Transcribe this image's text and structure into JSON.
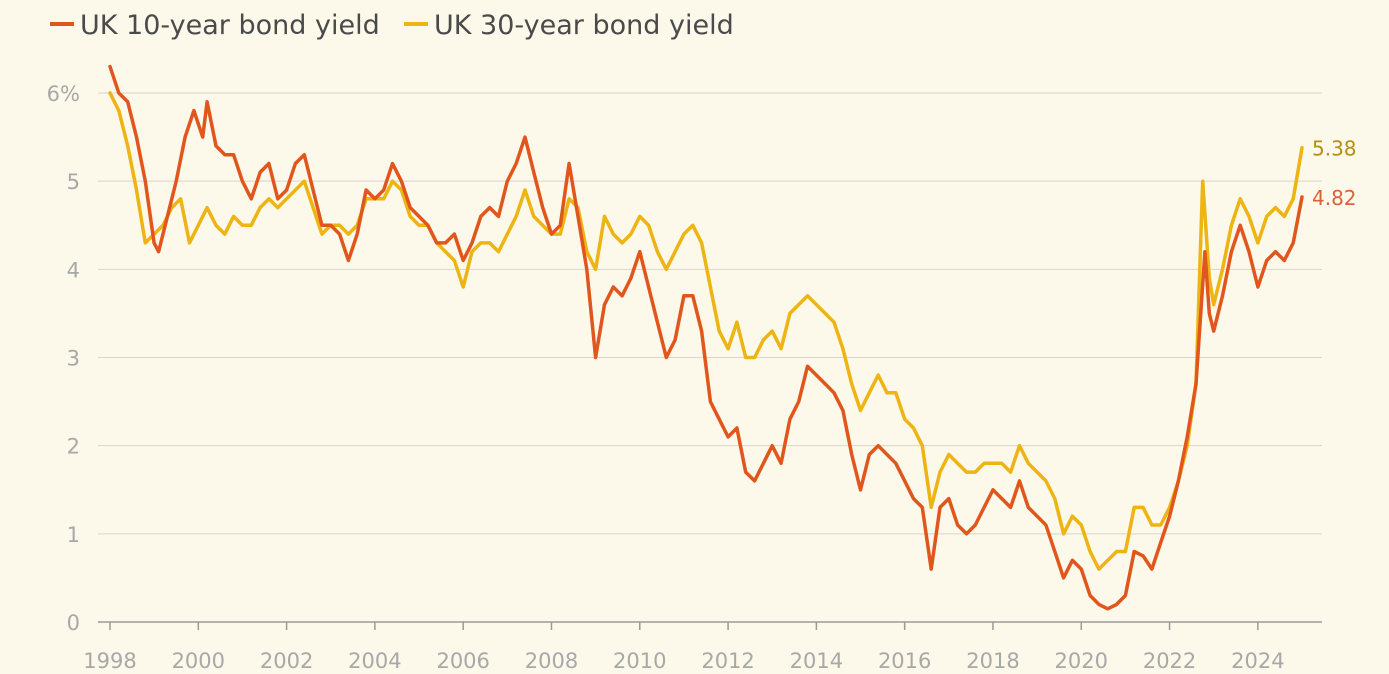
{
  "chart_data": {
    "type": "line",
    "ylim": [
      0,
      6
    ],
    "xlim": [
      1998,
      2025
    ],
    "x_ticks": [
      "1998",
      "2000",
      "2002",
      "2004",
      "2006",
      "2008",
      "2010",
      "2012",
      "2014",
      "2016",
      "2018",
      "2020",
      "2022",
      "2024"
    ],
    "y_ticks": [
      "0",
      "1",
      "2",
      "3",
      "4",
      "5",
      "6%"
    ],
    "grid": true,
    "legend": "top-left",
    "series": [
      {
        "name": "UK 10-year bond yield",
        "color": "#e0561c",
        "end_label": "4.82",
        "points": [
          [
            1998.0,
            6.3
          ],
          [
            1998.2,
            6.0
          ],
          [
            1998.4,
            5.9
          ],
          [
            1998.6,
            5.5
          ],
          [
            1998.8,
            5.0
          ],
          [
            1999.0,
            4.3
          ],
          [
            1999.1,
            4.2
          ],
          [
            1999.3,
            4.6
          ],
          [
            1999.5,
            5.0
          ],
          [
            1999.7,
            5.5
          ],
          [
            1999.9,
            5.8
          ],
          [
            2000.1,
            5.5
          ],
          [
            2000.2,
            5.9
          ],
          [
            2000.4,
            5.4
          ],
          [
            2000.6,
            5.3
          ],
          [
            2000.8,
            5.3
          ],
          [
            2001.0,
            5.0
          ],
          [
            2001.2,
            4.8
          ],
          [
            2001.4,
            5.1
          ],
          [
            2001.6,
            5.2
          ],
          [
            2001.8,
            4.8
          ],
          [
            2002.0,
            4.9
          ],
          [
            2002.2,
            5.2
          ],
          [
            2002.4,
            5.3
          ],
          [
            2002.6,
            4.9
          ],
          [
            2002.8,
            4.5
          ],
          [
            2003.0,
            4.5
          ],
          [
            2003.2,
            4.4
          ],
          [
            2003.4,
            4.1
          ],
          [
            2003.6,
            4.4
          ],
          [
            2003.8,
            4.9
          ],
          [
            2004.0,
            4.8
          ],
          [
            2004.2,
            4.9
          ],
          [
            2004.4,
            5.2
          ],
          [
            2004.6,
            5.0
          ],
          [
            2004.8,
            4.7
          ],
          [
            2005.0,
            4.6
          ],
          [
            2005.2,
            4.5
          ],
          [
            2005.4,
            4.3
          ],
          [
            2005.6,
            4.3
          ],
          [
            2005.8,
            4.4
          ],
          [
            2006.0,
            4.1
          ],
          [
            2006.2,
            4.3
          ],
          [
            2006.4,
            4.6
          ],
          [
            2006.6,
            4.7
          ],
          [
            2006.8,
            4.6
          ],
          [
            2007.0,
            5.0
          ],
          [
            2007.2,
            5.2
          ],
          [
            2007.4,
            5.5
          ],
          [
            2007.6,
            5.1
          ],
          [
            2007.8,
            4.7
          ],
          [
            2008.0,
            4.4
          ],
          [
            2008.2,
            4.5
          ],
          [
            2008.4,
            5.2
          ],
          [
            2008.6,
            4.6
          ],
          [
            2008.8,
            4.0
          ],
          [
            2009.0,
            3.0
          ],
          [
            2009.2,
            3.6
          ],
          [
            2009.4,
            3.8
          ],
          [
            2009.6,
            3.7
          ],
          [
            2009.8,
            3.9
          ],
          [
            2010.0,
            4.2
          ],
          [
            2010.2,
            3.8
          ],
          [
            2010.4,
            3.4
          ],
          [
            2010.6,
            3.0
          ],
          [
            2010.8,
            3.2
          ],
          [
            2011.0,
            3.7
          ],
          [
            2011.2,
            3.7
          ],
          [
            2011.4,
            3.3
          ],
          [
            2011.6,
            2.5
          ],
          [
            2011.8,
            2.3
          ],
          [
            2012.0,
            2.1
          ],
          [
            2012.2,
            2.2
          ],
          [
            2012.4,
            1.7
          ],
          [
            2012.6,
            1.6
          ],
          [
            2012.8,
            1.8
          ],
          [
            2013.0,
            2.0
          ],
          [
            2013.2,
            1.8
          ],
          [
            2013.4,
            2.3
          ],
          [
            2013.6,
            2.5
          ],
          [
            2013.8,
            2.9
          ],
          [
            2014.0,
            2.8
          ],
          [
            2014.2,
            2.7
          ],
          [
            2014.4,
            2.6
          ],
          [
            2014.6,
            2.4
          ],
          [
            2014.8,
            1.9
          ],
          [
            2015.0,
            1.5
          ],
          [
            2015.2,
            1.9
          ],
          [
            2015.4,
            2.0
          ],
          [
            2015.6,
            1.9
          ],
          [
            2015.8,
            1.8
          ],
          [
            2016.0,
            1.6
          ],
          [
            2016.2,
            1.4
          ],
          [
            2016.4,
            1.3
          ],
          [
            2016.6,
            0.6
          ],
          [
            2016.8,
            1.3
          ],
          [
            2017.0,
            1.4
          ],
          [
            2017.2,
            1.1
          ],
          [
            2017.4,
            1.0
          ],
          [
            2017.6,
            1.1
          ],
          [
            2017.8,
            1.3
          ],
          [
            2018.0,
            1.5
          ],
          [
            2018.2,
            1.4
          ],
          [
            2018.4,
            1.3
          ],
          [
            2018.6,
            1.6
          ],
          [
            2018.8,
            1.3
          ],
          [
            2019.0,
            1.2
          ],
          [
            2019.2,
            1.1
          ],
          [
            2019.4,
            0.8
          ],
          [
            2019.6,
            0.5
          ],
          [
            2019.8,
            0.7
          ],
          [
            2020.0,
            0.6
          ],
          [
            2020.2,
            0.3
          ],
          [
            2020.4,
            0.2
          ],
          [
            2020.6,
            0.15
          ],
          [
            2020.8,
            0.2
          ],
          [
            2021.0,
            0.3
          ],
          [
            2021.2,
            0.8
          ],
          [
            2021.4,
            0.75
          ],
          [
            2021.6,
            0.6
          ],
          [
            2021.8,
            0.9
          ],
          [
            2022.0,
            1.2
          ],
          [
            2022.2,
            1.6
          ],
          [
            2022.4,
            2.1
          ],
          [
            2022.6,
            2.7
          ],
          [
            2022.8,
            4.2
          ],
          [
            2022.9,
            3.5
          ],
          [
            2023.0,
            3.3
          ],
          [
            2023.2,
            3.7
          ],
          [
            2023.4,
            4.2
          ],
          [
            2023.6,
            4.5
          ],
          [
            2023.8,
            4.2
          ],
          [
            2024.0,
            3.8
          ],
          [
            2024.2,
            4.1
          ],
          [
            2024.4,
            4.2
          ],
          [
            2024.6,
            4.1
          ],
          [
            2024.8,
            4.3
          ],
          [
            2025.0,
            4.82
          ]
        ]
      },
      {
        "name": "UK 30-year bond yield",
        "color": "#edb413",
        "end_label": "5.38",
        "points": [
          [
            1998.0,
            6.0
          ],
          [
            1998.2,
            5.8
          ],
          [
            1998.4,
            5.4
          ],
          [
            1998.6,
            4.9
          ],
          [
            1998.8,
            4.3
          ],
          [
            1999.0,
            4.4
          ],
          [
            1999.2,
            4.5
          ],
          [
            1999.4,
            4.7
          ],
          [
            1999.6,
            4.8
          ],
          [
            1999.8,
            4.3
          ],
          [
            2000.0,
            4.5
          ],
          [
            2000.2,
            4.7
          ],
          [
            2000.4,
            4.5
          ],
          [
            2000.6,
            4.4
          ],
          [
            2000.8,
            4.6
          ],
          [
            2001.0,
            4.5
          ],
          [
            2001.2,
            4.5
          ],
          [
            2001.4,
            4.7
          ],
          [
            2001.6,
            4.8
          ],
          [
            2001.8,
            4.7
          ],
          [
            2002.0,
            4.8
          ],
          [
            2002.2,
            4.9
          ],
          [
            2002.4,
            5.0
          ],
          [
            2002.6,
            4.7
          ],
          [
            2002.8,
            4.4
          ],
          [
            2003.0,
            4.5
          ],
          [
            2003.2,
            4.5
          ],
          [
            2003.4,
            4.4
          ],
          [
            2003.6,
            4.5
          ],
          [
            2003.8,
            4.8
          ],
          [
            2004.0,
            4.8
          ],
          [
            2004.2,
            4.8
          ],
          [
            2004.4,
            5.0
          ],
          [
            2004.6,
            4.9
          ],
          [
            2004.8,
            4.6
          ],
          [
            2005.0,
            4.5
          ],
          [
            2005.2,
            4.5
          ],
          [
            2005.4,
            4.3
          ],
          [
            2005.6,
            4.2
          ],
          [
            2005.8,
            4.1
          ],
          [
            2006.0,
            3.8
          ],
          [
            2006.2,
            4.2
          ],
          [
            2006.4,
            4.3
          ],
          [
            2006.6,
            4.3
          ],
          [
            2006.8,
            4.2
          ],
          [
            2007.0,
            4.4
          ],
          [
            2007.2,
            4.6
          ],
          [
            2007.4,
            4.9
          ],
          [
            2007.6,
            4.6
          ],
          [
            2007.8,
            4.5
          ],
          [
            2008.0,
            4.4
          ],
          [
            2008.2,
            4.4
          ],
          [
            2008.4,
            4.8
          ],
          [
            2008.6,
            4.7
          ],
          [
            2008.8,
            4.2
          ],
          [
            2009.0,
            4.0
          ],
          [
            2009.2,
            4.6
          ],
          [
            2009.4,
            4.4
          ],
          [
            2009.6,
            4.3
          ],
          [
            2009.8,
            4.4
          ],
          [
            2010.0,
            4.6
          ],
          [
            2010.2,
            4.5
          ],
          [
            2010.4,
            4.2
          ],
          [
            2010.6,
            4.0
          ],
          [
            2010.8,
            4.2
          ],
          [
            2011.0,
            4.4
          ],
          [
            2011.2,
            4.5
          ],
          [
            2011.4,
            4.3
          ],
          [
            2011.6,
            3.8
          ],
          [
            2011.8,
            3.3
          ],
          [
            2012.0,
            3.1
          ],
          [
            2012.2,
            3.4
          ],
          [
            2012.4,
            3.0
          ],
          [
            2012.6,
            3.0
          ],
          [
            2012.8,
            3.2
          ],
          [
            2013.0,
            3.3
          ],
          [
            2013.2,
            3.1
          ],
          [
            2013.4,
            3.5
          ],
          [
            2013.6,
            3.6
          ],
          [
            2013.8,
            3.7
          ],
          [
            2014.0,
            3.6
          ],
          [
            2014.2,
            3.5
          ],
          [
            2014.4,
            3.4
          ],
          [
            2014.6,
            3.1
          ],
          [
            2014.8,
            2.7
          ],
          [
            2015.0,
            2.4
          ],
          [
            2015.2,
            2.6
          ],
          [
            2015.4,
            2.8
          ],
          [
            2015.6,
            2.6
          ],
          [
            2015.8,
            2.6
          ],
          [
            2016.0,
            2.3
          ],
          [
            2016.2,
            2.2
          ],
          [
            2016.4,
            2.0
          ],
          [
            2016.6,
            1.3
          ],
          [
            2016.8,
            1.7
          ],
          [
            2017.0,
            1.9
          ],
          [
            2017.2,
            1.8
          ],
          [
            2017.4,
            1.7
          ],
          [
            2017.6,
            1.7
          ],
          [
            2017.8,
            1.8
          ],
          [
            2018.0,
            1.8
          ],
          [
            2018.2,
            1.8
          ],
          [
            2018.4,
            1.7
          ],
          [
            2018.6,
            2.0
          ],
          [
            2018.8,
            1.8
          ],
          [
            2019.0,
            1.7
          ],
          [
            2019.2,
            1.6
          ],
          [
            2019.4,
            1.4
          ],
          [
            2019.6,
            1.0
          ],
          [
            2019.8,
            1.2
          ],
          [
            2020.0,
            1.1
          ],
          [
            2020.2,
            0.8
          ],
          [
            2020.4,
            0.6
          ],
          [
            2020.6,
            0.7
          ],
          [
            2020.8,
            0.8
          ],
          [
            2021.0,
            0.8
          ],
          [
            2021.2,
            1.3
          ],
          [
            2021.4,
            1.3
          ],
          [
            2021.6,
            1.1
          ],
          [
            2021.8,
            1.1
          ],
          [
            2022.0,
            1.3
          ],
          [
            2022.2,
            1.6
          ],
          [
            2022.4,
            2.0
          ],
          [
            2022.6,
            2.7
          ],
          [
            2022.75,
            5.0
          ],
          [
            2022.9,
            3.9
          ],
          [
            2023.0,
            3.6
          ],
          [
            2023.2,
            4.0
          ],
          [
            2023.4,
            4.5
          ],
          [
            2023.6,
            4.8
          ],
          [
            2023.8,
            4.6
          ],
          [
            2024.0,
            4.3
          ],
          [
            2024.2,
            4.6
          ],
          [
            2024.4,
            4.7
          ],
          [
            2024.6,
            4.6
          ],
          [
            2024.8,
            4.8
          ],
          [
            2025.0,
            5.38
          ]
        ]
      }
    ]
  }
}
